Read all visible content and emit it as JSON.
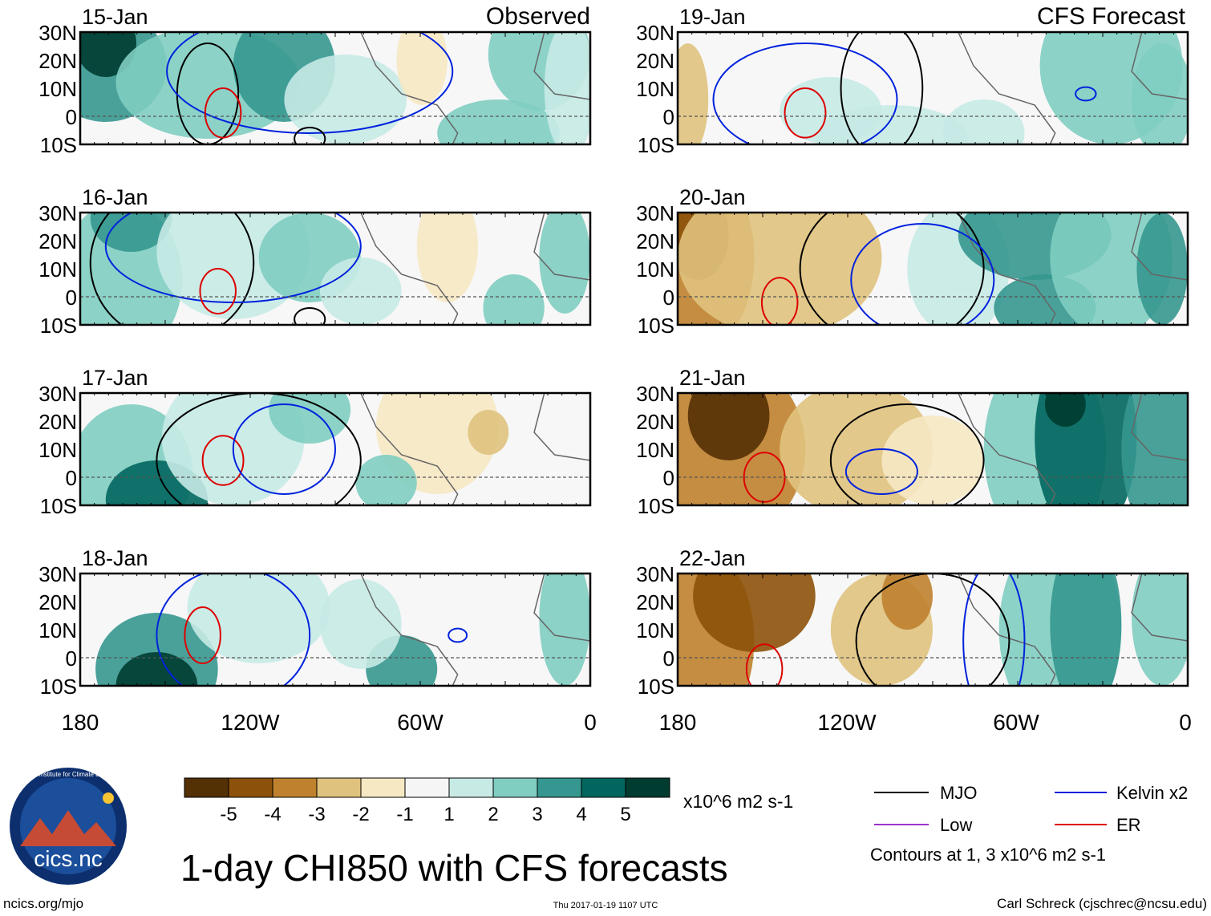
{
  "headers": {
    "observed": "Observed",
    "forecast": "CFS Forecast"
  },
  "panels": [
    {
      "date": "15-Jan",
      "type": "observed"
    },
    {
      "date": "16-Jan",
      "type": "observed"
    },
    {
      "date": "17-Jan",
      "type": "observed"
    },
    {
      "date": "18-Jan",
      "type": "observed"
    },
    {
      "date": "19-Jan",
      "type": "forecast"
    },
    {
      "date": "20-Jan",
      "type": "forecast"
    },
    {
      "date": "21-Jan",
      "type": "forecast"
    },
    {
      "date": "22-Jan",
      "type": "forecast"
    }
  ],
  "lat_labels": [
    "30N",
    "20N",
    "10N",
    "0",
    "10S"
  ],
  "lon_labels": [
    "180",
    "120W",
    "60W",
    "0"
  ],
  "colorbar": {
    "colors": [
      "#543005",
      "#8c510a",
      "#bf812d",
      "#dfc27d",
      "#f6e8c3",
      "#f5f5f5",
      "#c7eae5",
      "#80cdc1",
      "#35978f",
      "#01665e",
      "#003c30"
    ],
    "labels": [
      "-5",
      "-4",
      "-3",
      "-2",
      "-1",
      "1",
      "2",
      "3",
      "4",
      "5"
    ],
    "units": "x10^6 m2 s-1"
  },
  "legend": {
    "items": [
      {
        "label": "MJO",
        "color": "#000000"
      },
      {
        "label": "Kelvin x2",
        "color": "#0022dd"
      },
      {
        "label": "Low",
        "color": "#9933cc"
      },
      {
        "label": "ER",
        "color": "#dd0000"
      }
    ],
    "note": "Contours at 1, 3 x10^6 m2 s-1"
  },
  "title": "1-day CHI850 with CFS forecasts",
  "logo_text": "cics.nc",
  "logo_ring_text": "Cooperative Institute for Climate and Satellites",
  "footer": {
    "left": "ncics.org/mjo",
    "center": "Thu 2017-01-19 1107 UTC",
    "right": "Carl Schreck (cjschrec@ncsu.edu)"
  }
}
